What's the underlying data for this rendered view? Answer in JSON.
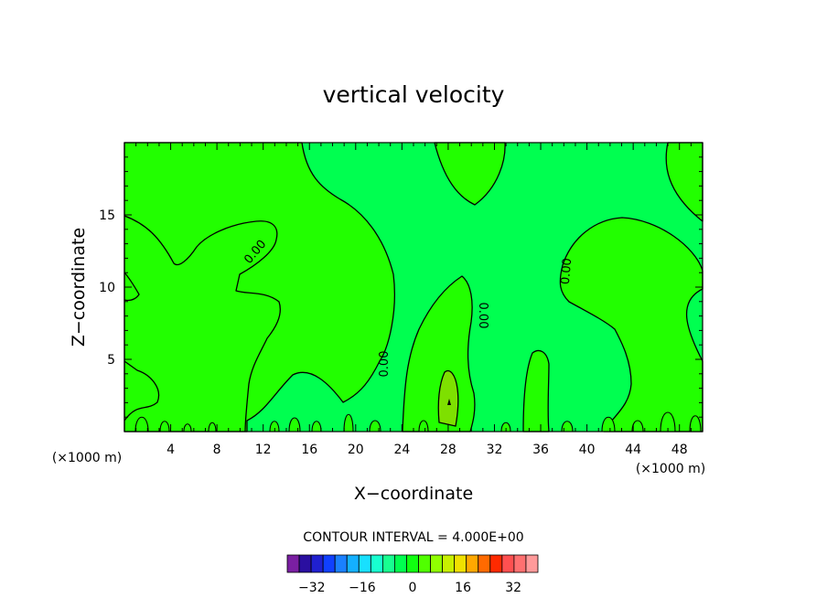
{
  "chart_data": {
    "type": "heatmap",
    "title": "vertical velocity",
    "xlabel": "X−coordinate",
    "ylabel": "Z−coordinate",
    "x_unit_left": "(×1000 m)",
    "x_unit_right": "(×1000 m)",
    "xlim": [
      0,
      50
    ],
    "ylim": [
      0,
      20
    ],
    "xticks": [
      4,
      8,
      12,
      16,
      20,
      24,
      28,
      32,
      36,
      40,
      44,
      48
    ],
    "yticks": [
      5,
      10,
      15
    ],
    "contour_label": "0.00",
    "contour_interval_text": "CONTOUR INTERVAL = 4.000E+00",
    "colorbar": {
      "levels": [
        -36,
        -32,
        -28,
        -24,
        -20,
        -16,
        -12,
        -8,
        -4,
        0,
        4,
        8,
        12,
        16,
        20,
        24,
        28,
        32,
        36
      ],
      "colors": [
        "#7a1fa2",
        "#2a0fa0",
        "#2020d0",
        "#1040ff",
        "#1a80ff",
        "#14b0ff",
        "#18e0ff",
        "#18ffd0",
        "#18ff90",
        "#00ff50",
        "#10ff10",
        "#50ff00",
        "#90ff00",
        "#c8f000",
        "#f0e000",
        "#ffa800",
        "#ff6a00",
        "#ff2a00",
        "#ff5050",
        "#ff7070",
        "#ff9a9a"
      ],
      "tick_labels": [
        "−32",
        "−16",
        "0",
        "16",
        "32"
      ],
      "tick_values": [
        -32,
        -16,
        0,
        16,
        32
      ]
    },
    "field_colors": {
      "background_level": "#00ff50",
      "positive_level": "#22ff00",
      "max_level": "#7ee000"
    }
  }
}
